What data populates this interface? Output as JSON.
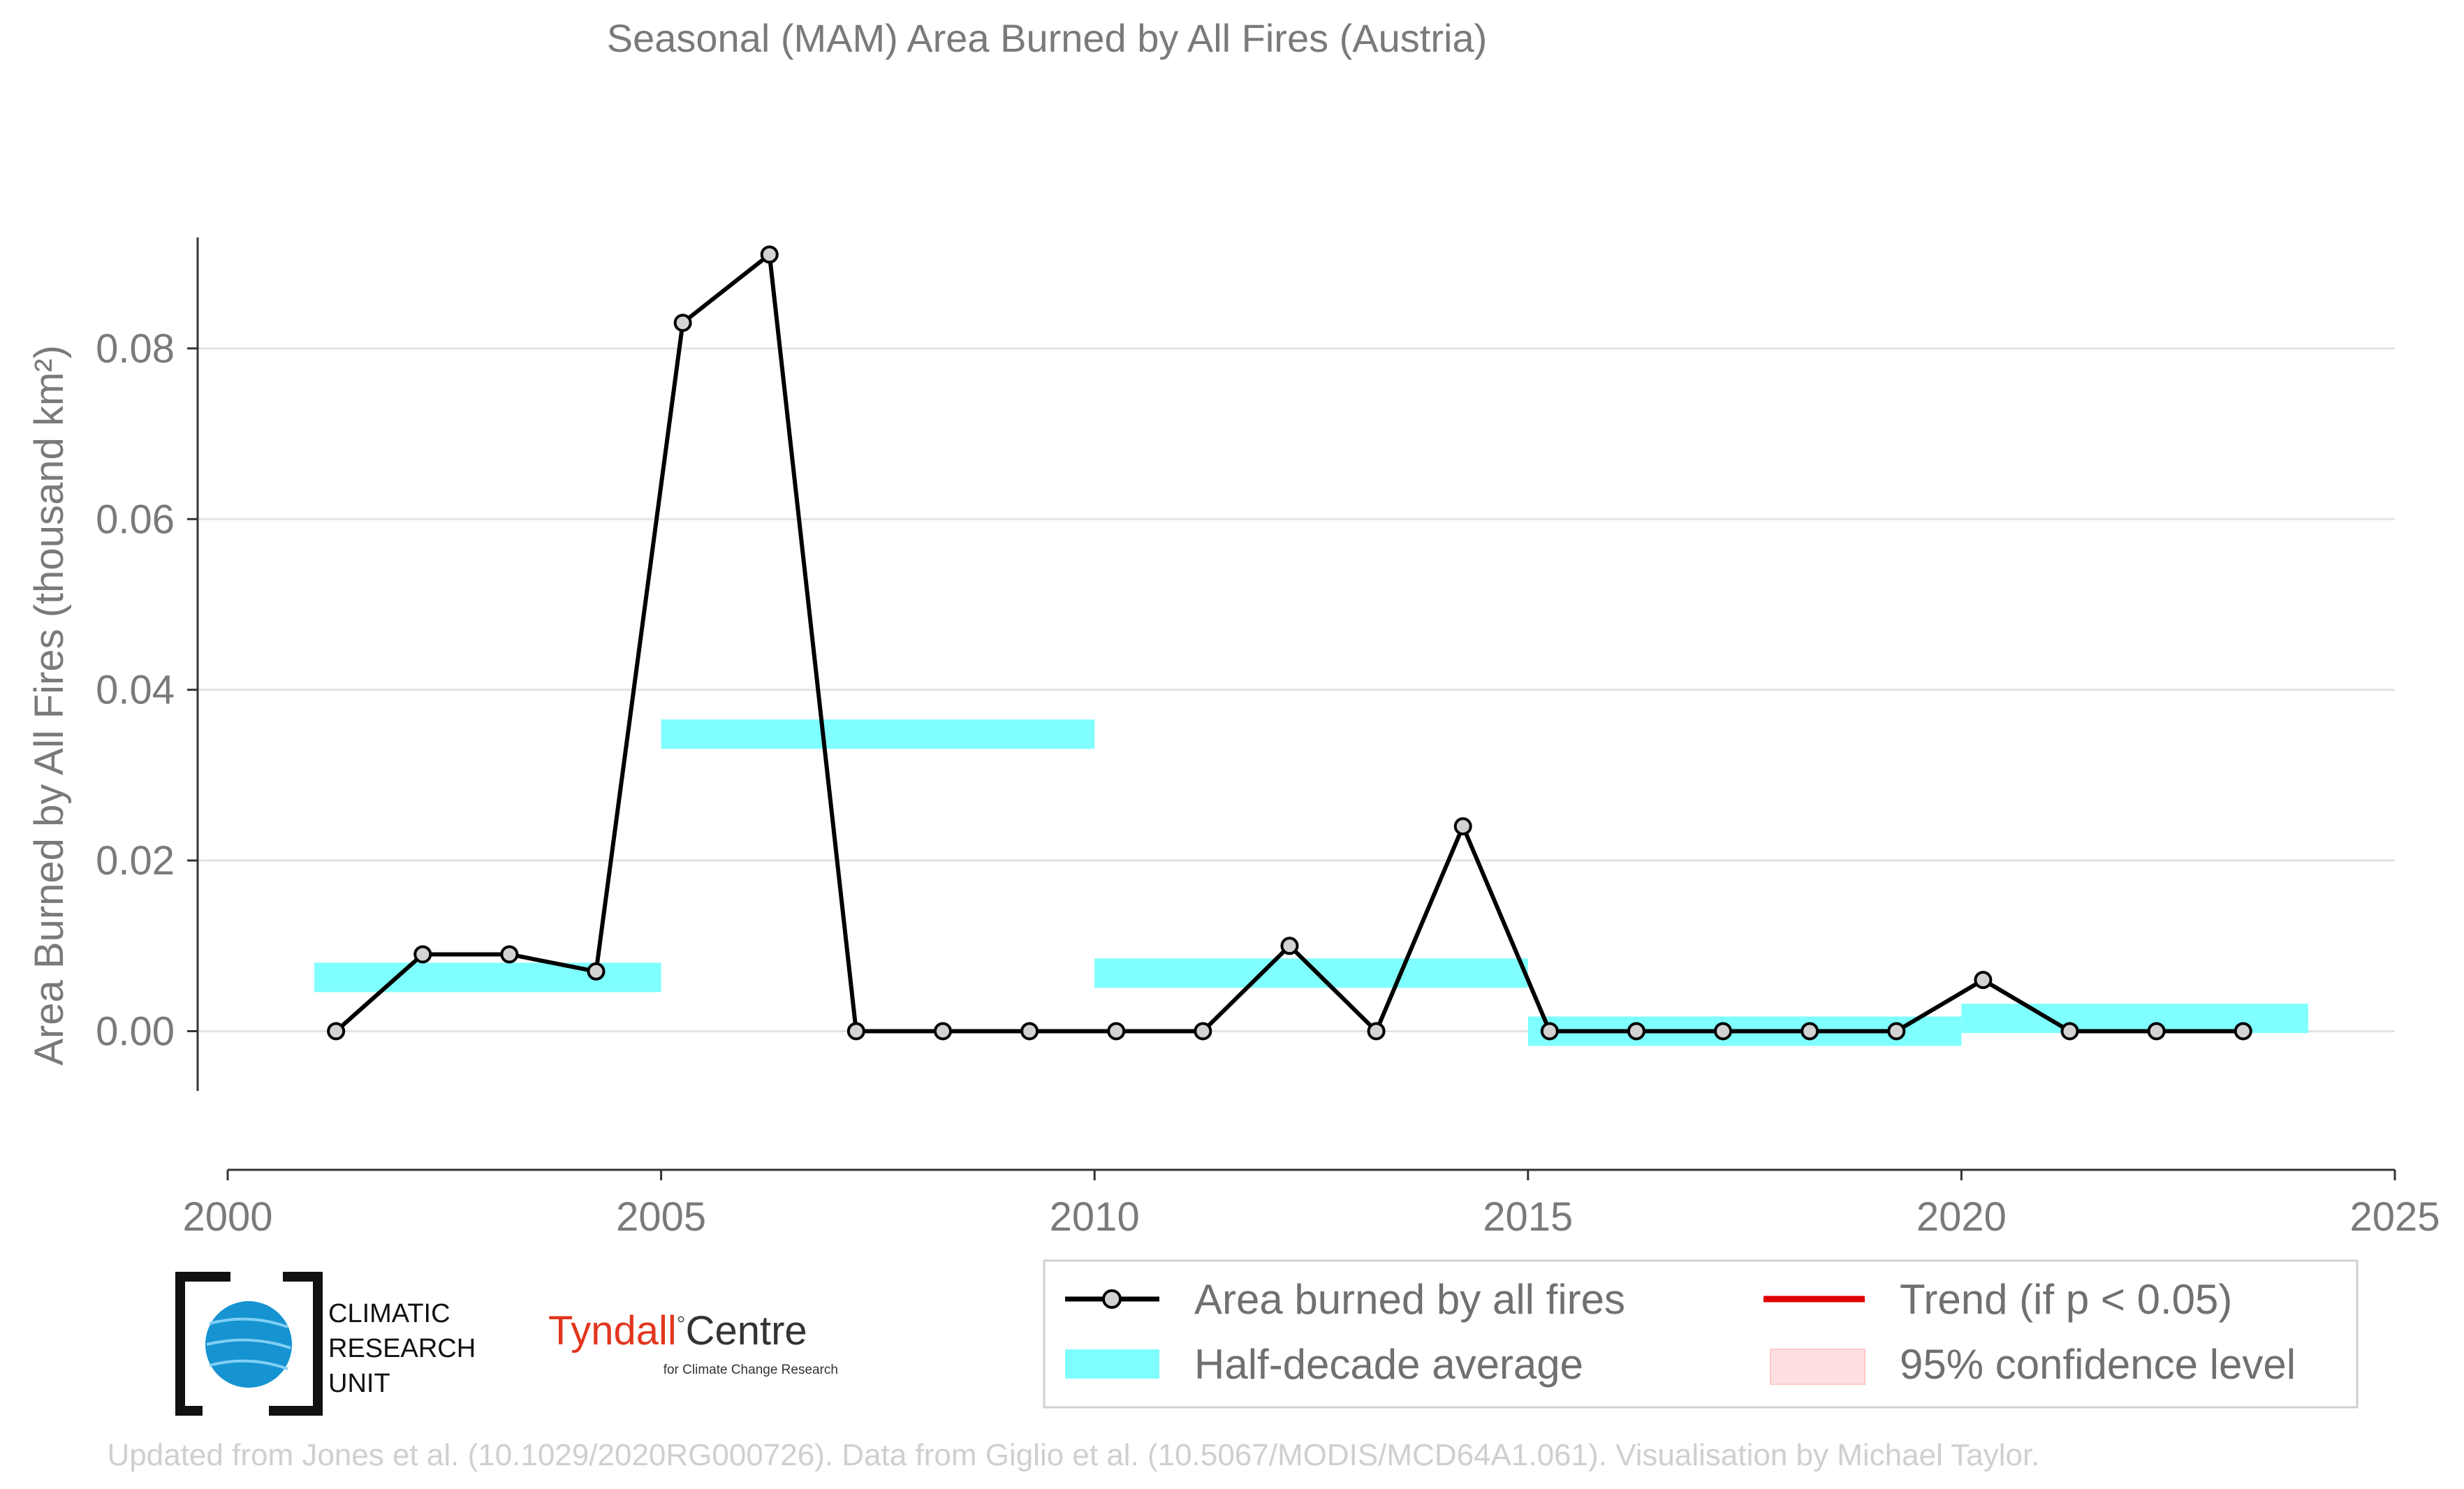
{
  "chart_data": {
    "type": "line",
    "title": "Seasonal (MAM) Area Burned by All Fires (Austria)",
    "xlabel": "",
    "ylabel": "Area Burned by All Fires (thousand km²)",
    "xlim": [
      2000,
      2025
    ],
    "ylim": [
      -0.007,
      0.093
    ],
    "x_ticks": [
      2000,
      2005,
      2010,
      2015,
      2020,
      2025
    ],
    "x_tick_labels": [
      "2000",
      "2005",
      "2010",
      "2015",
      "2020",
      "2025"
    ],
    "y_ticks": [
      0.0,
      0.02,
      0.04,
      0.06,
      0.08
    ],
    "y_tick_labels": [
      "0.00",
      "0.02",
      "0.04",
      "0.06",
      "0.08"
    ],
    "grid": "horizontal",
    "series": [
      {
        "name": "Area burned by all fires",
        "color": "#000000",
        "marker_fill": "#d3d3d3",
        "x": [
          2001,
          2002,
          2003,
          2004,
          2005,
          2006,
          2007,
          2008,
          2009,
          2010,
          2011,
          2012,
          2013,
          2014,
          2015,
          2016,
          2017,
          2018,
          2019,
          2020,
          2021,
          2022,
          2023
        ],
        "values": [
          0.0,
          0.009,
          0.009,
          0.007,
          0.083,
          0.091,
          0.0,
          0.0,
          0.0,
          0.0,
          0.0,
          0.01,
          0.0,
          0.024,
          0.0,
          0.0,
          0.0,
          0.0,
          0.0,
          0.006,
          0.0,
          0.0,
          0.0
        ]
      }
    ],
    "half_decade_averages": {
      "name": "Half-decade average",
      "color": "#7fffff",
      "segments": [
        {
          "start": 2001,
          "end": 2005,
          "value": 0.0063
        },
        {
          "start": 2005,
          "end": 2010,
          "value": 0.0348
        },
        {
          "start": 2010,
          "end": 2015,
          "value": 0.0068
        },
        {
          "start": 2015,
          "end": 2020,
          "value": 0.0
        },
        {
          "start": 2020,
          "end": 2024,
          "value": 0.0015
        }
      ]
    },
    "legend": {
      "placement": "bottom-right",
      "entries": [
        {
          "label": "Area burned by all fires",
          "kind": "line-marker",
          "color": "#000000"
        },
        {
          "label": "Trend (if p < 0.05)",
          "kind": "line",
          "color": "#e00000"
        },
        {
          "label": "Half-decade average",
          "kind": "band",
          "color": "#7fffff"
        },
        {
          "label": "95% confidence level",
          "kind": "patch",
          "color": "#ffd6d6"
        }
      ]
    }
  },
  "logos": {
    "cru": {
      "line1": "CLIMATIC",
      "line2": "RESEARCH",
      "line3": "UNIT"
    },
    "tyndall": {
      "word": "Tyndall",
      "degree": "°",
      "centre": "Centre",
      "sub": "for Climate Change Research"
    }
  },
  "credit": "Updated from Jones et al. (10.1029/2020RG000726). Data from Giglio et al. (10.5067/MODIS/MCD64A1.061). Visualisation by Michael Taylor."
}
